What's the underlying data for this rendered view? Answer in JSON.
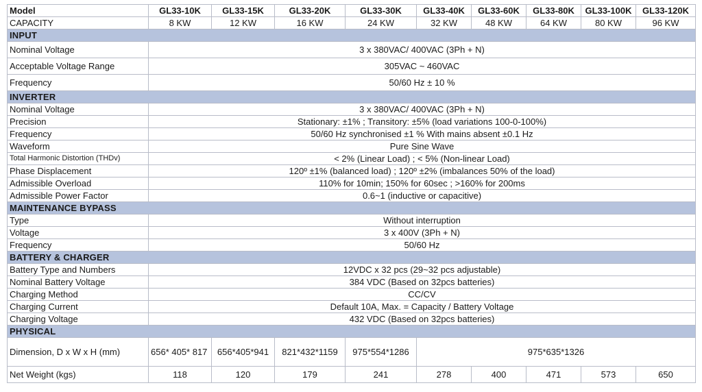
{
  "header": {
    "model_label": "Model",
    "models": [
      "GL33-10K",
      "GL33-15K",
      "GL33-20K",
      "GL33-30K",
      "GL33-40K",
      "GL33-60K",
      "GL33-80K",
      "GL33-100K",
      "GL33-120K"
    ],
    "capacity_label": "CAPACITY",
    "capacities": [
      "8 KW",
      "12 KW",
      "16 KW",
      "24 KW",
      "32 KW",
      "48 KW",
      "64 KW",
      "80 KW",
      "96 KW"
    ]
  },
  "input": {
    "title": "INPUT",
    "nominal_voltage": {
      "label": "Nominal Voltage",
      "value": "3 x 380VAC/ 400VAC (3Ph + N)"
    },
    "voltage_range": {
      "label": "Acceptable Voltage Range",
      "value": "305VAC ~  460VAC"
    },
    "frequency": {
      "label": "Frequency",
      "value": "50/60 Hz  ± 10 %"
    }
  },
  "inverter": {
    "title": "INVERTER",
    "nominal_voltage": {
      "label": "Nominal Voltage",
      "value": "3 x 380VAC/  400VAC (3Ph + N)"
    },
    "precision": {
      "label": "Precision",
      "value": "Stationary: ±1% ; Transitory: ±5%  (load variations 100-0-100%)"
    },
    "frequency": {
      "label": "Frequency",
      "value": "50/60 Hz synchronised ±1 % With mains absent ±0.1 Hz"
    },
    "waveform": {
      "label": "Waveform",
      "value": "Pure Sine Wave"
    },
    "thd": {
      "label": "Total Harmonic Distortion (THDv)",
      "value": "< 2% (Linear Load) ;     < 5% (Non-linear Load)"
    },
    "phase": {
      "label": "Phase  Displacement",
      "value": "120º ±1% (balanced load) ;  120º ±2% (imbalances 50% of the load)"
    },
    "overload": {
      "label": "Admissible  Overload",
      "value": "110% for 10min; 150% for 60sec ;     >160% for 200ms"
    },
    "power_factor": {
      "label": "Admissible  Power Factor",
      "value": "0.6~1 (inductive or capacitive)"
    }
  },
  "bypass": {
    "title": "MAINTENANCE BYPASS",
    "type": {
      "label": "Type",
      "value": "Without interruption"
    },
    "voltage": {
      "label": "Voltage",
      "value": "3 x 400V  (3Ph + N)"
    },
    "frequency": {
      "label": "Frequency",
      "value": "50/60 Hz"
    }
  },
  "battery": {
    "title": "BATTERY & CHARGER",
    "type": {
      "label": "Battery Type  and Numbers",
      "value": "12VDC x 32 pcs    (29~32 pcs adjustable)"
    },
    "nominal": {
      "label": "Nominal  Battery Voltage",
      "value": "384 VDC (Based on 32pcs batteries)"
    },
    "method": {
      "label": "Charging  Method",
      "value": "CC/CV"
    },
    "current": {
      "label": "Charging Current",
      "value": "Default 10A, Max. = Capacity / Battery Voltage"
    },
    "voltage": {
      "label": "Charging Voltage",
      "value": "432 VDC (Based on 32pcs batteries)"
    }
  },
  "physical": {
    "title": "PHYSICAL",
    "dimension_label": "Dimension, D x W x H (mm)",
    "dimensions": [
      "656* 405* 817",
      "656*405*941",
      "821*432*1159",
      "975*554*1286",
      "975*635*1326"
    ],
    "weight_label": "Net Weight (kgs)",
    "weights": [
      "118",
      "120",
      "179",
      "241",
      "278",
      "400",
      "471",
      "573",
      "650"
    ]
  }
}
